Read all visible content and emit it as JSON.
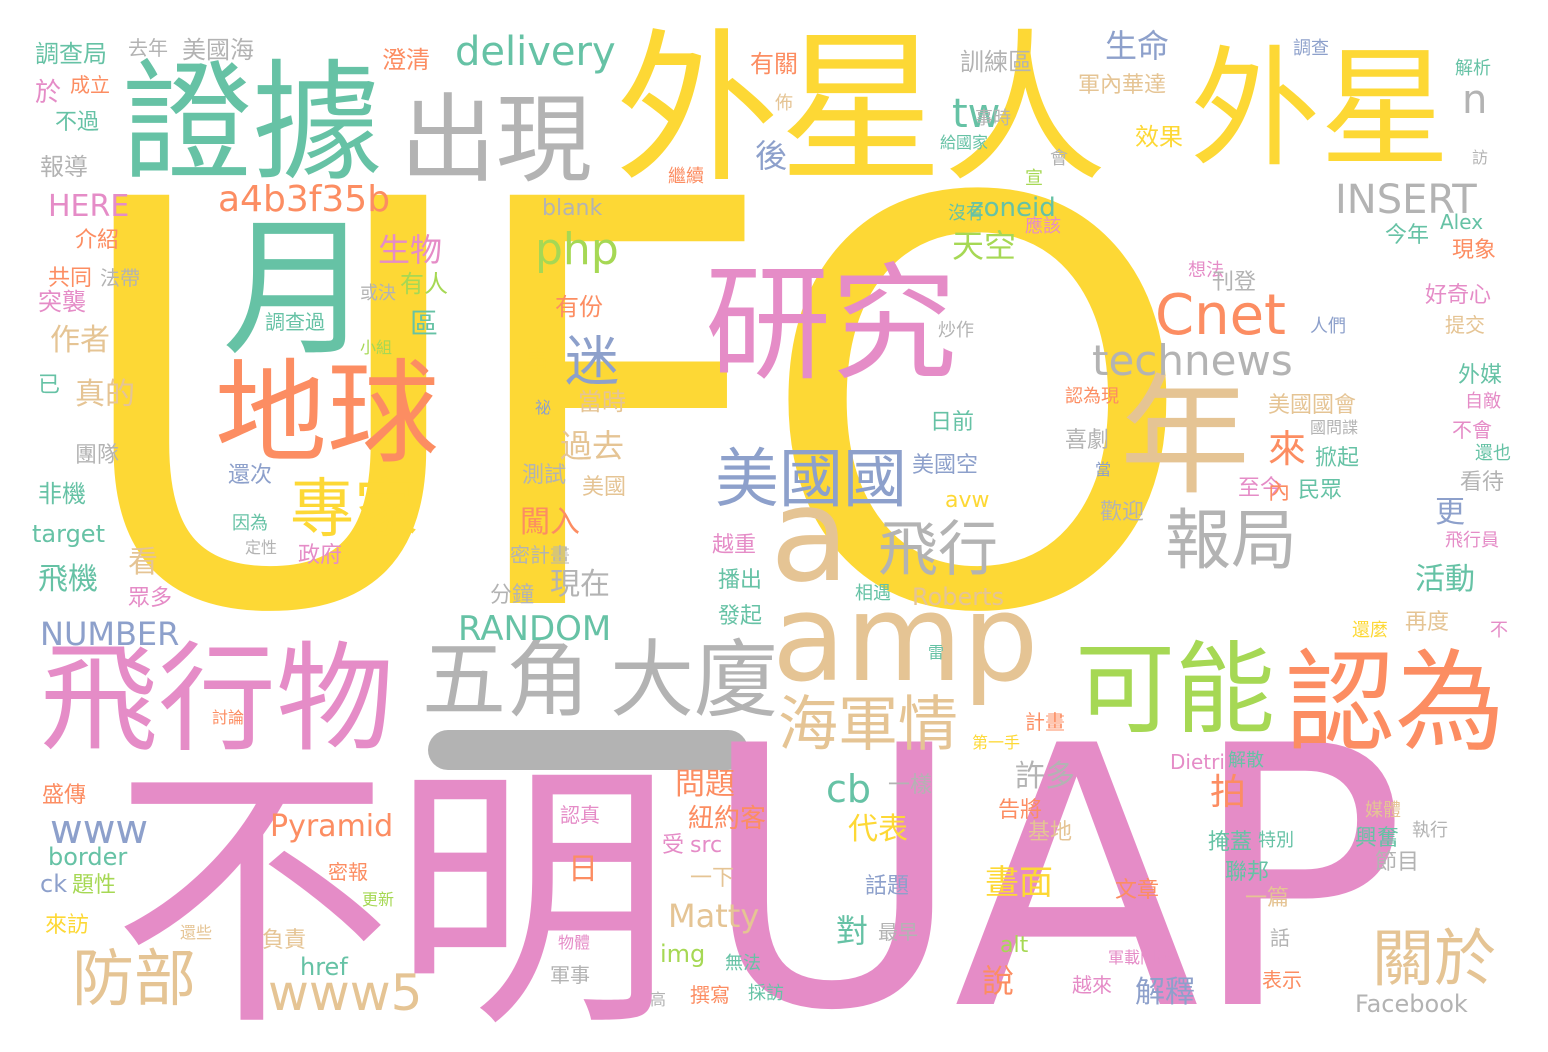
{
  "palette": {
    "yellow": "#fdd835",
    "pink": "#e58cc7",
    "green": "#66c2a5",
    "orange": "#fc8d62",
    "blue": "#8da0cb",
    "tan": "#e5c494",
    "lime": "#a6d854",
    "gray": "#b3b3b3"
  },
  "words": [
    {
      "t": "UFO",
      "c": "yellow"
    },
    {
      "t": "UAP",
      "c": "pink"
    },
    {
      "t": "不明",
      "c": "pink"
    },
    {
      "t": "外星人",
      "c": "yellow"
    },
    {
      "t": "外星",
      "c": "yellow"
    },
    {
      "t": "證據",
      "c": "green"
    },
    {
      "t": "出現",
      "c": "gray"
    },
    {
      "t": "月",
      "c": "green"
    },
    {
      "t": "地球",
      "c": "orange"
    },
    {
      "t": "研究",
      "c": "pink"
    },
    {
      "t": "年",
      "c": "tan"
    },
    {
      "t": "a",
      "c": "tan"
    },
    {
      "t": "amp",
      "c": "tan"
    },
    {
      "t": "飛行物",
      "c": "pink"
    },
    {
      "t": "五角",
      "c": "gray"
    },
    {
      "t": "大廈",
      "c": "gray"
    },
    {
      "t": "可能",
      "c": "lime"
    },
    {
      "t": "認為",
      "c": "orange"
    },
    {
      "t": "專家",
      "c": "yellow"
    },
    {
      "t": "美國國",
      "c": "blue"
    },
    {
      "t": "飛行",
      "c": "gray"
    },
    {
      "t": "報局",
      "c": "gray"
    },
    {
      "t": "海軍情",
      "c": "tan"
    },
    {
      "t": "Cnet",
      "c": "orange"
    },
    {
      "t": "technews",
      "c": "gray"
    },
    {
      "t": "防部",
      "c": "tan"
    },
    {
      "t": "www5",
      "c": "tan"
    },
    {
      "t": "關於",
      "c": "tan"
    },
    {
      "t": "delivery",
      "c": "green"
    },
    {
      "t": "a4b3f35b",
      "c": "orange"
    },
    {
      "t": "迷",
      "c": "blue"
    },
    {
      "t": "tw",
      "c": "green"
    },
    {
      "t": "php",
      "c": "lime"
    },
    {
      "t": "生物",
      "c": "pink"
    },
    {
      "t": "天空",
      "c": "lime"
    },
    {
      "t": "INSERT",
      "c": "gray"
    },
    {
      "t": "n",
      "c": "gray"
    },
    {
      "t": "生命",
      "c": "blue"
    },
    {
      "t": "RANDOM",
      "c": "green"
    },
    {
      "t": "NUMBER",
      "c": "blue"
    },
    {
      "t": "www",
      "c": "blue"
    },
    {
      "t": "cb",
      "c": "green"
    },
    {
      "t": "Pyramid",
      "c": "orange"
    },
    {
      "t": "Matty",
      "c": "tan"
    },
    {
      "t": "HERE",
      "c": "pink"
    },
    {
      "t": "過去",
      "c": "tan"
    },
    {
      "t": "來",
      "c": "orange"
    },
    {
      "t": "闖入",
      "c": "orange"
    },
    {
      "t": "現在",
      "c": "gray"
    },
    {
      "t": "問題",
      "c": "orange"
    },
    {
      "t": "代表",
      "c": "yellow"
    },
    {
      "t": "畫面",
      "c": "yellow"
    },
    {
      "t": "許多",
      "c": "gray"
    },
    {
      "t": "拍",
      "c": "orange"
    },
    {
      "t": "活動",
      "c": "green"
    },
    {
      "t": "更",
      "c": "blue"
    },
    {
      "t": "作者",
      "c": "tan"
    },
    {
      "t": "真的",
      "c": "tan"
    },
    {
      "t": "飛機",
      "c": "green"
    },
    {
      "t": "後",
      "c": "blue"
    },
    {
      "t": "看",
      "c": "tan"
    },
    {
      "t": "日",
      "c": "orange"
    },
    {
      "t": "對",
      "c": "green"
    },
    {
      "t": "說",
      "c": "orange"
    },
    {
      "t": "解釋",
      "c": "blue"
    },
    {
      "t": "區",
      "c": "green"
    },
    {
      "t": "有人",
      "c": "lime"
    },
    {
      "t": "紐約客",
      "c": "orange"
    },
    {
      "t": "target",
      "c": "green"
    },
    {
      "t": "border",
      "c": "green"
    },
    {
      "t": "ck",
      "c": "blue"
    },
    {
      "t": "zoneid",
      "c": "green"
    },
    {
      "t": "blank",
      "c": "gray"
    },
    {
      "t": "Roberts",
      "c": "tan"
    },
    {
      "t": "Facebook",
      "c": "gray"
    },
    {
      "t": "Dietrich",
      "c": "pink"
    },
    {
      "t": "Alex",
      "c": "green"
    },
    {
      "t": "img",
      "c": "lime"
    },
    {
      "t": "href",
      "c": "green"
    },
    {
      "t": "alt",
      "c": "lime"
    },
    {
      "t": "src",
      "c": "pink"
    },
    {
      "t": "avw",
      "c": "yellow"
    },
    {
      "t": "調查局",
      "c": "green"
    },
    {
      "t": "去年",
      "c": "gray"
    },
    {
      "t": "美國海",
      "c": "gray"
    },
    {
      "t": "成立",
      "c": "orange"
    },
    {
      "t": "於",
      "c": "pink"
    },
    {
      "t": "不過",
      "c": "green"
    },
    {
      "t": "報導",
      "c": "gray"
    },
    {
      "t": "介紹",
      "c": "orange"
    },
    {
      "t": "共同",
      "c": "orange"
    },
    {
      "t": "法帶",
      "c": "gray"
    },
    {
      "t": "突襲",
      "c": "pink"
    },
    {
      "t": "已",
      "c": "green"
    },
    {
      "t": "團隊",
      "c": "gray"
    },
    {
      "t": "非機",
      "c": "green"
    },
    {
      "t": "眾多",
      "c": "pink"
    },
    {
      "t": "盛傳",
      "c": "orange"
    },
    {
      "t": "題性",
      "c": "lime"
    },
    {
      "t": "來訪",
      "c": "yellow"
    },
    {
      "t": "澄清",
      "c": "orange"
    },
    {
      "t": "有關",
      "c": "orange"
    },
    {
      "t": "佈",
      "c": "tan"
    },
    {
      "t": "繼續",
      "c": "orange"
    },
    {
      "t": "訓練區",
      "c": "gray"
    },
    {
      "t": "事時",
      "c": "gray"
    },
    {
      "t": "給國家",
      "c": "green"
    },
    {
      "t": "軍內華達",
      "c": "tan"
    },
    {
      "t": "效果",
      "c": "yellow"
    },
    {
      "t": "調查",
      "c": "blue"
    },
    {
      "t": "解析",
      "c": "green"
    },
    {
      "t": "訪",
      "c": "gray"
    },
    {
      "t": "宣",
      "c": "lime"
    },
    {
      "t": "會",
      "c": "gray"
    },
    {
      "t": "沒有",
      "c": "green"
    },
    {
      "t": "應該",
      "c": "pink"
    },
    {
      "t": "今年",
      "c": "green"
    },
    {
      "t": "現象",
      "c": "orange"
    },
    {
      "t": "想法",
      "c": "pink"
    },
    {
      "t": "刊登",
      "c": "gray"
    },
    {
      "t": "好奇心",
      "c": "pink"
    },
    {
      "t": "提交",
      "c": "tan"
    },
    {
      "t": "人們",
      "c": "blue"
    },
    {
      "t": "炒作",
      "c": "gray"
    },
    {
      "t": "調查過",
      "c": "green"
    },
    {
      "t": "小組",
      "c": "lime"
    },
    {
      "t": "或決",
      "c": "gray"
    },
    {
      "t": "有份",
      "c": "orange"
    },
    {
      "t": "事",
      "c": "yellow"
    },
    {
      "t": "當時",
      "c": "tan"
    },
    {
      "t": "祕",
      "c": "blue"
    },
    {
      "t": "認為現",
      "c": "orange"
    },
    {
      "t": "美國國會",
      "c": "tan"
    },
    {
      "t": "外媒",
      "c": "green"
    },
    {
      "t": "自敵",
      "c": "pink"
    },
    {
      "t": "國問諜",
      "c": "gray"
    },
    {
      "t": "不會",
      "c": "pink"
    },
    {
      "t": "還也",
      "c": "green"
    },
    {
      "t": "看待",
      "c": "gray"
    },
    {
      "t": "日前",
      "c": "green"
    },
    {
      "t": "喜劇",
      "c": "gray"
    },
    {
      "t": "當",
      "c": "blue"
    },
    {
      "t": "掀起",
      "c": "green"
    },
    {
      "t": "至今",
      "c": "pink"
    },
    {
      "t": "內",
      "c": "orange"
    },
    {
      "t": "民眾",
      "c": "green"
    },
    {
      "t": "歡迎",
      "c": "gray"
    },
    {
      "t": "美國空",
      "c": "blue"
    },
    {
      "t": "還次",
      "c": "blue"
    },
    {
      "t": "測試",
      "c": "gray"
    },
    {
      "t": "美國",
      "c": "tan"
    },
    {
      "t": "因為",
      "c": "green"
    },
    {
      "t": "定性",
      "c": "gray"
    },
    {
      "t": "政府",
      "c": "pink"
    },
    {
      "t": "密計畫",
      "c": "gray"
    },
    {
      "t": "越重",
      "c": "pink"
    },
    {
      "t": "播出",
      "c": "green"
    },
    {
      "t": "分鐘",
      "c": "gray"
    },
    {
      "t": "發起",
      "c": "green"
    },
    {
      "t": "相遇",
      "c": "green"
    },
    {
      "t": "飛行員",
      "c": "pink"
    },
    {
      "t": "再度",
      "c": "tan"
    },
    {
      "t": "還麼",
      "c": "yellow"
    },
    {
      "t": "不",
      "c": "pink"
    },
    {
      "t": "討論",
      "c": "orange"
    },
    {
      "t": "計畫",
      "c": "orange"
    },
    {
      "t": "第一手",
      "c": "yellow"
    },
    {
      "t": "雷",
      "c": "green"
    },
    {
      "t": "一樣",
      "c": "gray"
    },
    {
      "t": "解散",
      "c": "green"
    },
    {
      "t": "告將",
      "c": "orange"
    },
    {
      "t": "基地",
      "c": "tan"
    },
    {
      "t": "認真",
      "c": "pink"
    },
    {
      "t": "受",
      "c": "pink"
    },
    {
      "t": "媒體",
      "c": "tan"
    },
    {
      "t": "執行",
      "c": "gray"
    },
    {
      "t": "興奮",
      "c": "green"
    },
    {
      "t": "掩蓋",
      "c": "green"
    },
    {
      "t": "特別",
      "c": "green"
    },
    {
      "t": "節目",
      "c": "gray"
    },
    {
      "t": "密報",
      "c": "orange"
    },
    {
      "t": "更新",
      "c": "lime"
    },
    {
      "t": "一下",
      "c": "tan"
    },
    {
      "t": "話題",
      "c": "blue"
    },
    {
      "t": "文章",
      "c": "orange"
    },
    {
      "t": "聯邦",
      "c": "green"
    },
    {
      "t": "一篇",
      "c": "tan"
    },
    {
      "t": "還些",
      "c": "tan"
    },
    {
      "t": "負責",
      "c": "tan"
    },
    {
      "t": "物體",
      "c": "pink"
    },
    {
      "t": "最早",
      "c": "gray"
    },
    {
      "t": "話",
      "c": "gray"
    },
    {
      "t": "無法",
      "c": "green"
    },
    {
      "t": "軍事",
      "c": "gray"
    },
    {
      "t": "撰寫",
      "c": "orange"
    },
    {
      "t": "採訪",
      "c": "green"
    },
    {
      "t": "高",
      "c": "gray"
    },
    {
      "t": "軍載門機",
      "c": "pink"
    },
    {
      "t": "越來",
      "c": "pink"
    },
    {
      "t": "表示",
      "c": "orange"
    }
  ]
}
